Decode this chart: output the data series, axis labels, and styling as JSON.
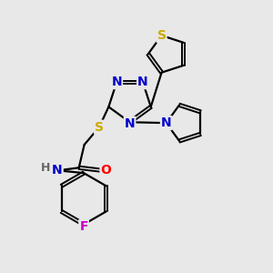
{
  "bg_color": "#e8e8e8",
  "atom_colors": {
    "N": "#0000cc",
    "S": "#ccaa00",
    "O": "#ff0000",
    "F": "#cc00cc",
    "H": "#666666"
  },
  "figsize": [
    3.0,
    3.0
  ],
  "dpi": 100
}
